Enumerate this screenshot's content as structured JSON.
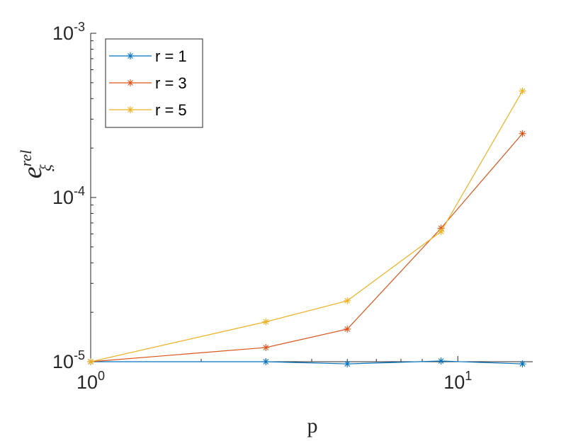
{
  "chart_data": {
    "type": "line",
    "title": "",
    "xlabel": "p",
    "ylabel": {
      "base": "e",
      "subscript": "ξ",
      "superscript": "rel"
    },
    "xscale": "log",
    "yscale": "log",
    "xlim": [
      1,
      16
    ],
    "ylim": [
      1e-05,
      0.001
    ],
    "x_ticks": [
      {
        "value": 1,
        "base": "10",
        "exp": "0"
      },
      {
        "value": 10,
        "base": "10",
        "exp": "1"
      }
    ],
    "y_ticks": [
      {
        "value": 1e-05,
        "base": "10",
        "exp": "-5"
      },
      {
        "value": 0.0001,
        "base": "10",
        "exp": "-4"
      },
      {
        "value": 0.001,
        "base": "10",
        "exp": "-3"
      }
    ],
    "grid": false,
    "legend_position": "top-left",
    "x": [
      1,
      3,
      5,
      9,
      15
    ],
    "series": [
      {
        "name": "r = 1",
        "color": "#0072BD",
        "marker": "asterisk",
        "values": [
          1e-05,
          1e-05,
          9.7e-06,
          1.01e-05,
          9.7e-06
        ]
      },
      {
        "name": "r = 3",
        "color": "#D95319",
        "marker": "asterisk",
        "values": [
          1e-05,
          1.22e-05,
          1.58e-05,
          6.5e-05,
          0.000245
        ]
      },
      {
        "name": "r = 5",
        "color": "#EDB120",
        "marker": "asterisk",
        "values": [
          1e-05,
          1.75e-05,
          2.35e-05,
          6.2e-05,
          0.000445
        ]
      }
    ]
  }
}
